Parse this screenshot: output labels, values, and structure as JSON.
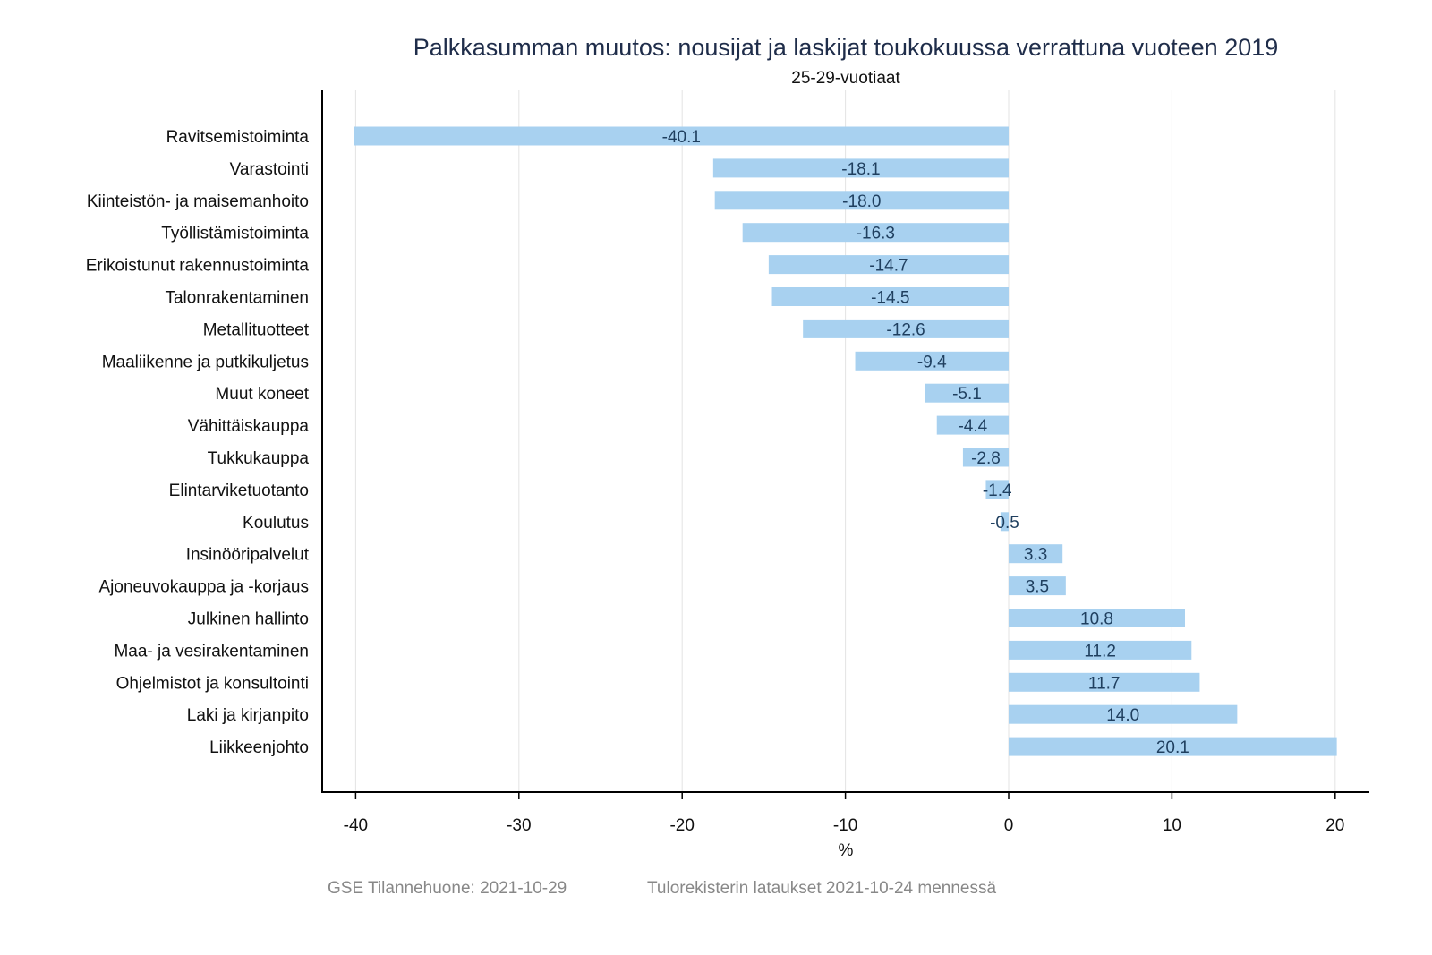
{
  "chart_data": {
    "type": "bar",
    "orientation": "horizontal",
    "title": "Palkkasumman muutos: nousijat ja laskijat toukokuussa verrattuna vuoteen 2019",
    "subtitle": "25-29-vuotiaat",
    "xlabel": "%",
    "ylabel": "",
    "xlim": [
      -42,
      22
    ],
    "xticks": [
      -40,
      -30,
      -20,
      -10,
      0,
      10,
      20
    ],
    "grid": true,
    "bar_color": "#a8d1f0",
    "label_color": "#1f3f5f",
    "categories": [
      "Ravitsemistoiminta",
      "Varastointi",
      "Kiinteistön- ja maisemanhoito",
      "Työllistämistoiminta",
      "Erikoistunut rakennustoiminta",
      "Talonrakentaminen",
      "Metallituotteet",
      "Maaliikenne ja putkikuljetus",
      "Muut koneet",
      "Vähittäiskauppa",
      "Tukkukauppa",
      "Elintarviketuotanto",
      "Koulutus",
      "Insinööripalvelut",
      "Ajoneuvokauppa ja -korjaus",
      "Julkinen hallinto",
      "Maa- ja vesirakentaminen",
      "Ohjelmistot ja konsultointi",
      "Laki ja kirjanpito",
      "Liikkeenjohto"
    ],
    "values": [
      -40.1,
      -18.1,
      -18.0,
      -16.3,
      -14.7,
      -14.5,
      -12.6,
      -9.4,
      -5.1,
      -4.4,
      -2.8,
      -1.4,
      -0.5,
      3.3,
      3.5,
      10.8,
      11.2,
      11.7,
      14.0,
      20.1
    ]
  },
  "footer": {
    "source": "GSE Tilannehuone: 2021-10-29",
    "note": "Tulorekisterin lataukset 2021-10-24 mennessä"
  }
}
